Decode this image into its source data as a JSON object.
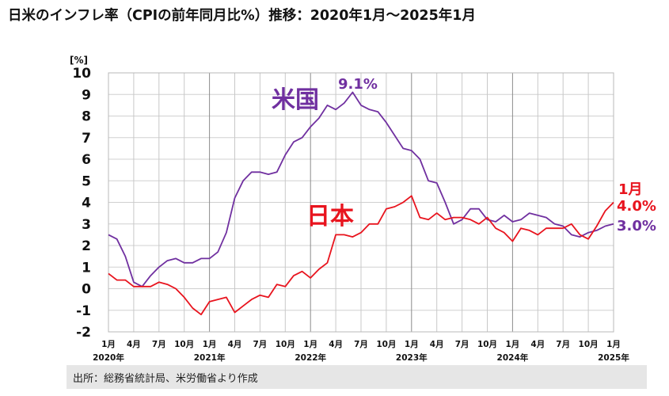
{
  "page": {
    "title": "日米のインフレ率（CPIの前年同月比%）推移：2020年1月～2025年1月",
    "source": "出所：総務省統計局、米労働省より作成"
  },
  "chart_data": {
    "type": "line",
    "yunit": "[%]",
    "ylim": [
      -2,
      10
    ],
    "yticks": [
      -2,
      -1,
      0,
      1,
      2,
      3,
      4,
      5,
      6,
      7,
      8,
      9,
      10
    ],
    "grid": true,
    "x": [
      "2020-01",
      "2020-02",
      "2020-03",
      "2020-04",
      "2020-05",
      "2020-06",
      "2020-07",
      "2020-08",
      "2020-09",
      "2020-10",
      "2020-11",
      "2020-12",
      "2021-01",
      "2021-02",
      "2021-03",
      "2021-04",
      "2021-05",
      "2021-06",
      "2021-07",
      "2021-08",
      "2021-09",
      "2021-10",
      "2021-11",
      "2021-12",
      "2022-01",
      "2022-02",
      "2022-03",
      "2022-04",
      "2022-05",
      "2022-06",
      "2022-07",
      "2022-08",
      "2022-09",
      "2022-10",
      "2022-11",
      "2022-12",
      "2023-01",
      "2023-02",
      "2023-03",
      "2023-04",
      "2023-05",
      "2023-06",
      "2023-07",
      "2023-08",
      "2023-09",
      "2023-10",
      "2023-11",
      "2023-12",
      "2024-01",
      "2024-02",
      "2024-03",
      "2024-04",
      "2024-05",
      "2024-06",
      "2024-07",
      "2024-08",
      "2024-09",
      "2024-10",
      "2024-11",
      "2024-12",
      "2025-01"
    ],
    "month_ticks": [
      "1月",
      "4月",
      "7月",
      "10月",
      "1月",
      "4月",
      "7月",
      "10月",
      "1月",
      "4月",
      "7月",
      "10月",
      "1月",
      "4月",
      "7月",
      "10月",
      "1月",
      "4月",
      "7月",
      "10月",
      "1月"
    ],
    "year_labels": [
      "2020年",
      "2021年",
      "2022年",
      "2023年",
      "2024年",
      "2025年"
    ],
    "series": [
      {
        "name": "米国",
        "color": "#7030a0",
        "values": [
          2.5,
          2.3,
          1.5,
          0.3,
          0.1,
          0.6,
          1.0,
          1.3,
          1.4,
          1.2,
          1.2,
          1.4,
          1.4,
          1.7,
          2.6,
          4.2,
          5.0,
          5.4,
          5.4,
          5.3,
          5.4,
          6.2,
          6.8,
          7.0,
          7.5,
          7.9,
          8.5,
          8.3,
          8.6,
          9.1,
          8.5,
          8.3,
          8.2,
          7.7,
          7.1,
          6.5,
          6.4,
          6.0,
          5.0,
          4.9,
          4.0,
          3.0,
          3.2,
          3.7,
          3.7,
          3.2,
          3.1,
          3.4,
          3.1,
          3.2,
          3.5,
          3.4,
          3.3,
          3.0,
          2.9,
          2.5,
          2.4,
          2.6,
          2.7,
          2.9,
          3.0
        ],
        "peak_label": "9.1%",
        "end_label": "3.0%"
      },
      {
        "name": "日本",
        "color": "#e8141e",
        "values": [
          0.7,
          0.4,
          0.4,
          0.1,
          0.1,
          0.1,
          0.3,
          0.2,
          0.0,
          -0.4,
          -0.9,
          -1.2,
          -0.6,
          -0.5,
          -0.4,
          -1.1,
          -0.8,
          -0.5,
          -0.3,
          -0.4,
          0.2,
          0.1,
          0.6,
          0.8,
          0.5,
          0.9,
          1.2,
          2.5,
          2.5,
          2.4,
          2.6,
          3.0,
          3.0,
          3.7,
          3.8,
          4.0,
          4.3,
          3.3,
          3.2,
          3.5,
          3.2,
          3.3,
          3.3,
          3.2,
          3.0,
          3.3,
          2.8,
          2.6,
          2.2,
          2.8,
          2.7,
          2.5,
          2.8,
          2.8,
          2.8,
          3.0,
          2.5,
          2.3,
          2.9,
          3.6,
          4.0
        ],
        "end_month_label": "1月",
        "end_label": "4.0%"
      }
    ]
  }
}
